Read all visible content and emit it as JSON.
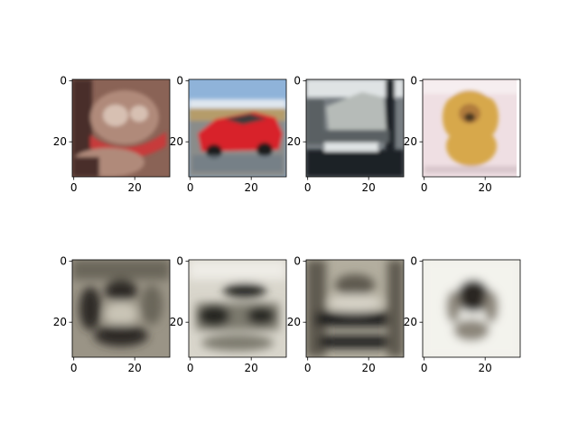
{
  "figure": {
    "layout": "2 rows x 4 columns of image subplots",
    "axis_range": [
      0,
      31
    ],
    "x_ticks": [
      0,
      20
    ],
    "y_ticks": [
      0,
      20
    ],
    "tick_color": "#000000",
    "background": "#ffffff"
  },
  "panels": [
    {
      "name": "original-cat",
      "row": "original",
      "icon": "cat-image",
      "colors": {
        "bg": "#8a6356",
        "mid": "#b08a7a",
        "accent": "#c73b3b",
        "dark": "#4a2d2a",
        "light": "#d7c0b2"
      }
    },
    {
      "name": "original-car",
      "row": "original",
      "icon": "red-car-image",
      "colors": {
        "sky": "#8fb3d9",
        "ground": "#8a8c8a",
        "body": "#d8232c",
        "window": "#3a3a3a",
        "wheel": "#1d1d1d"
      }
    },
    {
      "name": "original-truck",
      "row": "original",
      "icon": "truck-image",
      "colors": {
        "bg": "#777d82",
        "body": "#b6bbb8",
        "dark": "#1e2226",
        "light": "#dfe3e4",
        "mid": "#5a6064"
      }
    },
    {
      "name": "original-dog",
      "row": "original",
      "icon": "dog-image",
      "colors": {
        "bg": "#efdfe3",
        "fur": "#d7a84c",
        "face": "#b07b3c",
        "dark": "#4a3722",
        "light": "#f6eef0"
      }
    },
    {
      "name": "reconstructed-cat",
      "row": "reconstructed",
      "icon": "blurred-reconstruction-image",
      "colors": {
        "bg": "#9a9486",
        "dark": "#2e2c25",
        "mid": "#6a665a",
        "light": "#c9c4b6"
      }
    },
    {
      "name": "reconstructed-car",
      "row": "reconstructed",
      "icon": "blurred-reconstruction-image",
      "colors": {
        "bg": "#d9d6cc",
        "dark": "#262520",
        "mid": "#7d7a6e",
        "light": "#eeece6"
      }
    },
    {
      "name": "reconstructed-truck",
      "row": "reconstructed",
      "icon": "blurred-reconstruction-image",
      "colors": {
        "bg": "#b3ae9f",
        "dark": "#1f1e1a",
        "mid": "#5e5a50",
        "light": "#d6d2c6"
      }
    },
    {
      "name": "reconstructed-dog",
      "row": "reconstructed",
      "icon": "blurred-reconstruction-image",
      "colors": {
        "bg": "#eeede7",
        "dark": "#2b2722",
        "mid": "#8c867a",
        "light": "#f7f6f2"
      }
    }
  ]
}
